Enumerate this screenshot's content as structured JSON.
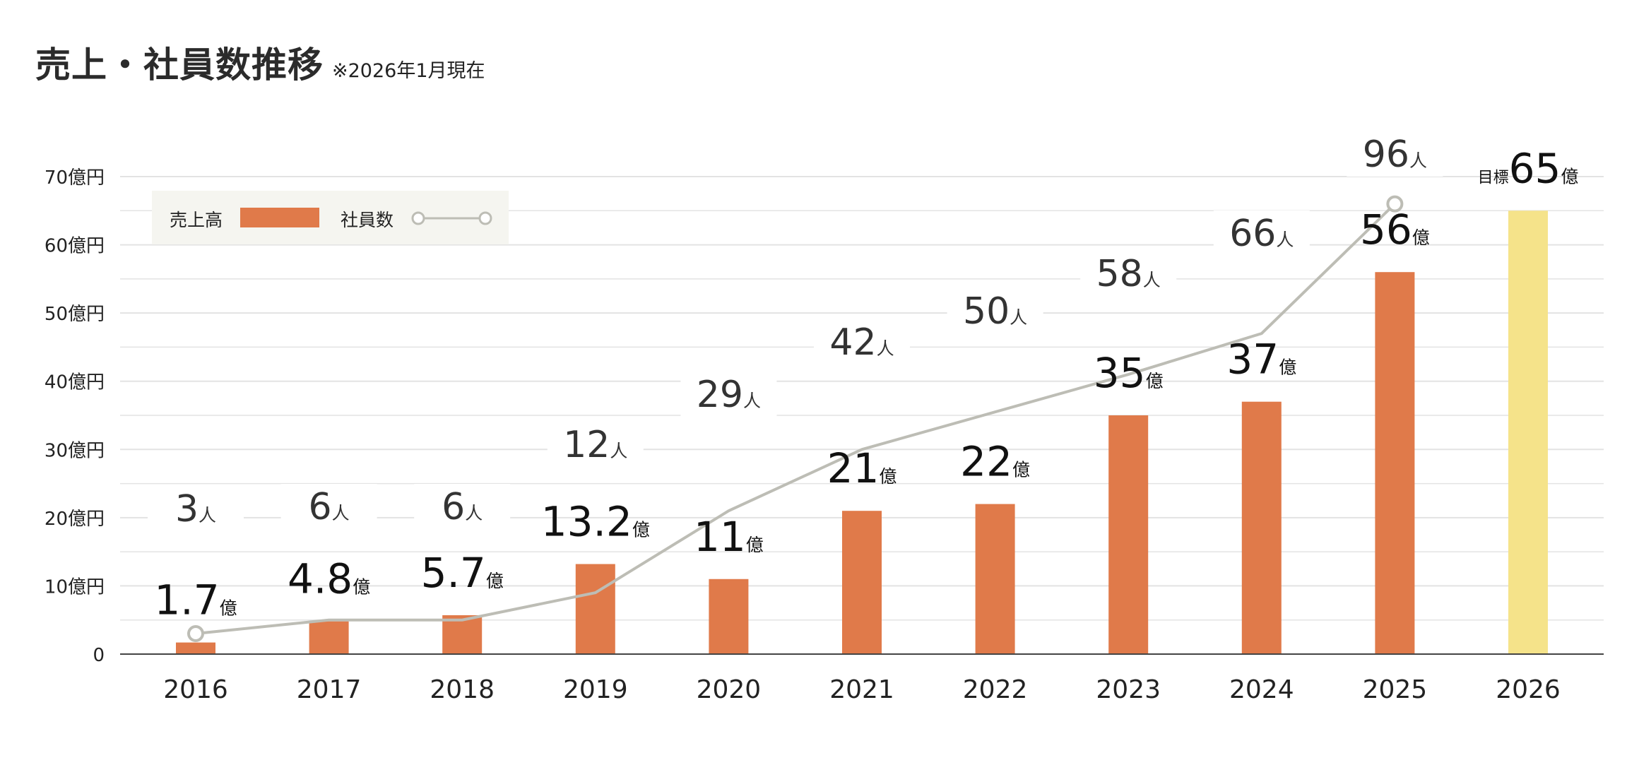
{
  "title": "売上・社員数推移",
  "note": "※2026年1月現在",
  "colors": {
    "bar": "#e07a4a",
    "target_bar": "#f5e38a",
    "line": "#bdbdb5",
    "grid": "#e3e3e3",
    "legend_bg": "#f5f5f0",
    "text": "#222222"
  },
  "chart_data": {
    "type": "bar+line",
    "title": "売上・社員数推移",
    "categories": [
      "2016",
      "2017",
      "2018",
      "2019",
      "2020",
      "2021",
      "2022",
      "2023",
      "2024",
      "2025",
      "2026"
    ],
    "ylim": [
      0,
      70
    ],
    "yticks": [
      0,
      10,
      20,
      30,
      40,
      50,
      60,
      70
    ],
    "ytick_labels": [
      "0",
      "10億円",
      "20億円",
      "30億円",
      "40億円",
      "50億円",
      "60億円",
      "70億円"
    ],
    "legend": {
      "sales_label": "売上高",
      "employees_label": "社員数",
      "position": "top-left"
    },
    "sales": {
      "name": "売上高",
      "unit": "億",
      "values": [
        1.7,
        4.8,
        5.7,
        13.2,
        11,
        21,
        22,
        35,
        37,
        56,
        65
      ],
      "labels": [
        "1.7",
        "4.8",
        "5.7",
        "13.2",
        "11",
        "21",
        "22",
        "35",
        "37",
        "56",
        "65"
      ],
      "target_index": 10,
      "target_prefix": "目標"
    },
    "employees": {
      "name": "社員数",
      "unit": "人",
      "values": [
        3,
        6,
        6,
        12,
        29,
        42,
        50,
        58,
        66,
        96,
        null
      ],
      "labels": [
        "3",
        "6",
        "6",
        "12",
        "29",
        "42",
        "50",
        "58",
        "66",
        "96",
        null
      ],
      "line_position_yaxis": [
        3,
        5,
        5,
        9,
        21,
        30,
        35.5,
        41,
        47,
        66,
        null
      ]
    }
  }
}
